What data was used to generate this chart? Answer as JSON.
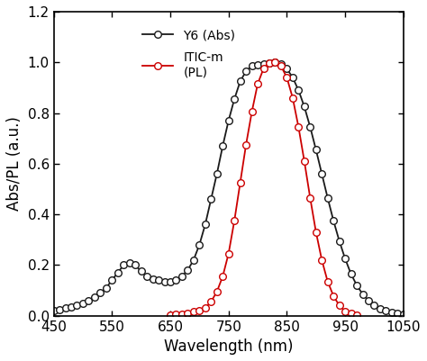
{
  "title": "",
  "xlabel": "Wavelength (nm)",
  "ylabel": "Abs/PL (a.u.)",
  "xlim": [
    450,
    1050
  ],
  "ylim": [
    0,
    1.2
  ],
  "xticks": [
    450,
    550,
    650,
    750,
    850,
    950,
    1050
  ],
  "yticks": [
    0,
    0.2,
    0.4,
    0.6,
    0.8,
    1.0,
    1.2
  ],
  "background_color": "#ffffff",
  "legend": [
    {
      "label": "Y6 (Abs)",
      "color": "#1a1a1a",
      "linestyle": "-",
      "marker": "o"
    },
    {
      "label": "ITIC-m\n(PL)",
      "color": "#cc0000",
      "linestyle": "-",
      "marker": "o"
    }
  ],
  "y6_abs_x": [
    450,
    460,
    470,
    480,
    490,
    500,
    510,
    520,
    530,
    540,
    550,
    560,
    570,
    580,
    590,
    600,
    610,
    620,
    630,
    640,
    650,
    660,
    670,
    680,
    690,
    700,
    710,
    720,
    730,
    740,
    750,
    760,
    770,
    780,
    790,
    800,
    810,
    820,
    830,
    840,
    850,
    860,
    870,
    880,
    890,
    900,
    910,
    920,
    930,
    940,
    950,
    960,
    970,
    980,
    990,
    1000,
    1010,
    1020,
    1030,
    1040,
    1050
  ],
  "y6_abs_y": [
    0.02,
    0.025,
    0.03,
    0.035,
    0.04,
    0.05,
    0.06,
    0.075,
    0.09,
    0.11,
    0.14,
    0.17,
    0.2,
    0.21,
    0.2,
    0.175,
    0.155,
    0.145,
    0.14,
    0.135,
    0.135,
    0.14,
    0.155,
    0.18,
    0.22,
    0.28,
    0.36,
    0.46,
    0.56,
    0.67,
    0.77,
    0.855,
    0.925,
    0.965,
    0.985,
    0.99,
    0.995,
    0.998,
    1.0,
    0.995,
    0.975,
    0.94,
    0.89,
    0.825,
    0.745,
    0.655,
    0.56,
    0.465,
    0.375,
    0.295,
    0.225,
    0.165,
    0.12,
    0.085,
    0.06,
    0.04,
    0.028,
    0.02,
    0.013,
    0.008,
    0.005
  ],
  "itic_pl_x": [
    650,
    660,
    670,
    680,
    690,
    700,
    710,
    720,
    730,
    740,
    750,
    760,
    770,
    780,
    790,
    800,
    810,
    820,
    830,
    840,
    850,
    860,
    870,
    880,
    890,
    900,
    910,
    920,
    930,
    940,
    950,
    960,
    970
  ],
  "itic_pl_y": [
    0.002,
    0.005,
    0.007,
    0.01,
    0.015,
    0.02,
    0.03,
    0.055,
    0.095,
    0.155,
    0.245,
    0.375,
    0.525,
    0.675,
    0.805,
    0.915,
    0.975,
    0.998,
    1.0,
    0.985,
    0.94,
    0.86,
    0.745,
    0.61,
    0.465,
    0.33,
    0.22,
    0.135,
    0.078,
    0.04,
    0.018,
    0.008,
    0.003
  ],
  "figsize": [
    4.74,
    4.01
  ],
  "dpi": 100,
  "marker_size": 5.5,
  "linewidth": 1.3,
  "tick_labelsize": 11,
  "axis_labelsize": 12
}
